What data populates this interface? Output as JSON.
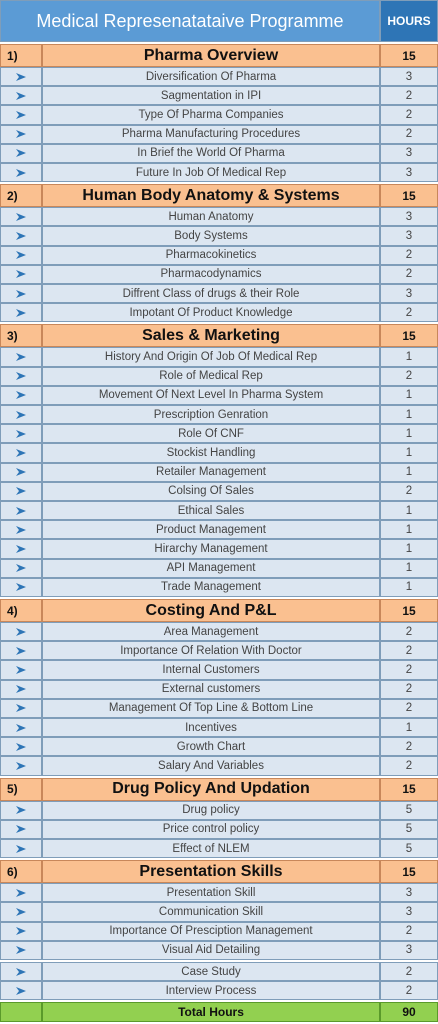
{
  "header": {
    "title": "Medical Represenatataive Programme",
    "hours_label": "HOURS"
  },
  "sections": [
    {
      "number": "1)",
      "title": "Pharma Overview",
      "hours": 15,
      "items": [
        {
          "name": "Diversification Of Pharma",
          "hours": 3
        },
        {
          "name": "Sagmentation in IPI",
          "hours": 2
        },
        {
          "name": "Type Of Pharma Companies",
          "hours": 2
        },
        {
          "name": "Pharma Manufacturing Procedures",
          "hours": 2
        },
        {
          "name": "In Brief the World Of Pharma",
          "hours": 3
        },
        {
          "name": "Future In Job Of Medical Rep",
          "hours": 3
        }
      ]
    },
    {
      "number": "2)",
      "title": "Human Body Anatomy & Systems",
      "hours": 15,
      "items": [
        {
          "name": "Human Anatomy",
          "hours": 3
        },
        {
          "name": "Body Systems",
          "hours": 3
        },
        {
          "name": "Pharmacokinetics",
          "hours": 2
        },
        {
          "name": "Pharmacodynamics",
          "hours": 2
        },
        {
          "name": "Diffrent Class of drugs & their Role",
          "hours": 3
        },
        {
          "name": "Impotant Of Product Knowledge",
          "hours": 2
        }
      ]
    },
    {
      "number": "3)",
      "title": "Sales & Marketing",
      "hours": 15,
      "items": [
        {
          "name": "History And Origin Of Job Of Medical Rep",
          "hours": 1
        },
        {
          "name": "Role of Medical Rep",
          "hours": 2
        },
        {
          "name": "Movement Of Next Level In Pharma System",
          "hours": 1
        },
        {
          "name": "Prescription Genration",
          "hours": 1
        },
        {
          "name": "Role Of CNF",
          "hours": 1
        },
        {
          "name": "Stockist Handling",
          "hours": 1
        },
        {
          "name": "Retailer Management",
          "hours": 1
        },
        {
          "name": "Colsing Of Sales",
          "hours": 2
        },
        {
          "name": "Ethical Sales",
          "hours": 1
        },
        {
          "name": "Product Management",
          "hours": 1
        },
        {
          "name": "Hirarchy Management",
          "hours": 1
        },
        {
          "name": "API Management",
          "hours": 1
        },
        {
          "name": "Trade Management",
          "hours": 1
        }
      ]
    },
    {
      "number": "4)",
      "title": "Costing And P&L",
      "hours": 15,
      "items": [
        {
          "name": "Area Management",
          "hours": 2
        },
        {
          "name": "Importance Of Relation With Doctor",
          "hours": 2
        },
        {
          "name": "Internal Customers",
          "hours": 2
        },
        {
          "name": "External customers",
          "hours": 2
        },
        {
          "name": "Management Of Top Line & Bottom Line",
          "hours": 2
        },
        {
          "name": "Incentives",
          "hours": 1
        },
        {
          "name": "Growth Chart",
          "hours": 2
        },
        {
          "name": "Salary And Variables",
          "hours": 2
        }
      ]
    },
    {
      "number": "5)",
      "title": "Drug Policy And Updation",
      "hours": 15,
      "items": [
        {
          "name": "Drug policy",
          "hours": 5
        },
        {
          "name": "Price control policy",
          "hours": 5
        },
        {
          "name": "Effect of NLEM",
          "hours": 5
        }
      ]
    },
    {
      "number": "6)",
      "title": "Presentation Skills",
      "hours": 15,
      "items": [
        {
          "name": "Presentation Skill",
          "hours": 3
        },
        {
          "name": "Communication Skill",
          "hours": 3
        },
        {
          "name": "Importance Of Presciption Management",
          "hours": 2
        },
        {
          "name": "Visual Aid Detailing",
          "hours": 3
        }
      ]
    }
  ],
  "extra_items": [
    {
      "name": "Case Study",
      "hours": 2
    },
    {
      "name": "Interview Process",
      "hours": 2
    }
  ],
  "total": {
    "label": "Total Hours",
    "hours": 90
  }
}
